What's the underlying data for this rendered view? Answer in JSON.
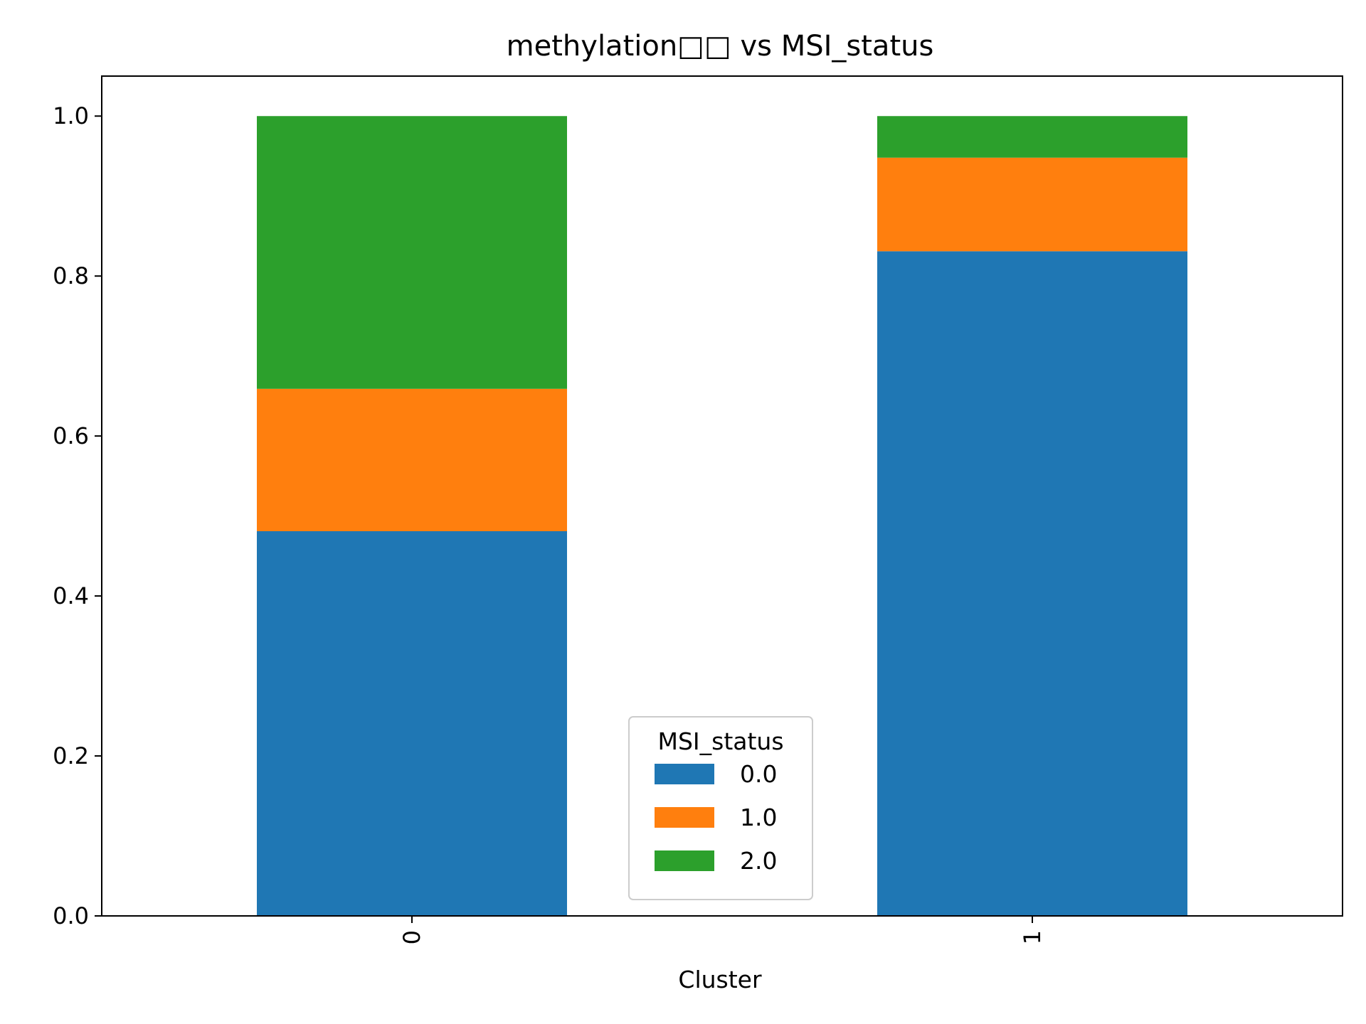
{
  "chart_data": {
    "type": "bar",
    "stacked": true,
    "title": "methylation□□ vs MSI_status",
    "xlabel": "Cluster",
    "ylabel": "",
    "categories": [
      "0",
      "1"
    ],
    "ylim": [
      0,
      1.05
    ],
    "yticks": [
      "0.0",
      "0.2",
      "0.4",
      "0.6",
      "0.8",
      "1.0"
    ],
    "legend": {
      "title": "MSI_status",
      "placement": "lower-center"
    },
    "grid": false,
    "series": [
      {
        "name": "0.0",
        "color": "#1f77b4",
        "values": [
          0.481,
          0.831
        ]
      },
      {
        "name": "1.0",
        "color": "#ff7f0e",
        "values": [
          0.178,
          0.117
        ]
      },
      {
        "name": "2.0",
        "color": "#2ca02c",
        "values": [
          0.341,
          0.052
        ]
      }
    ]
  }
}
